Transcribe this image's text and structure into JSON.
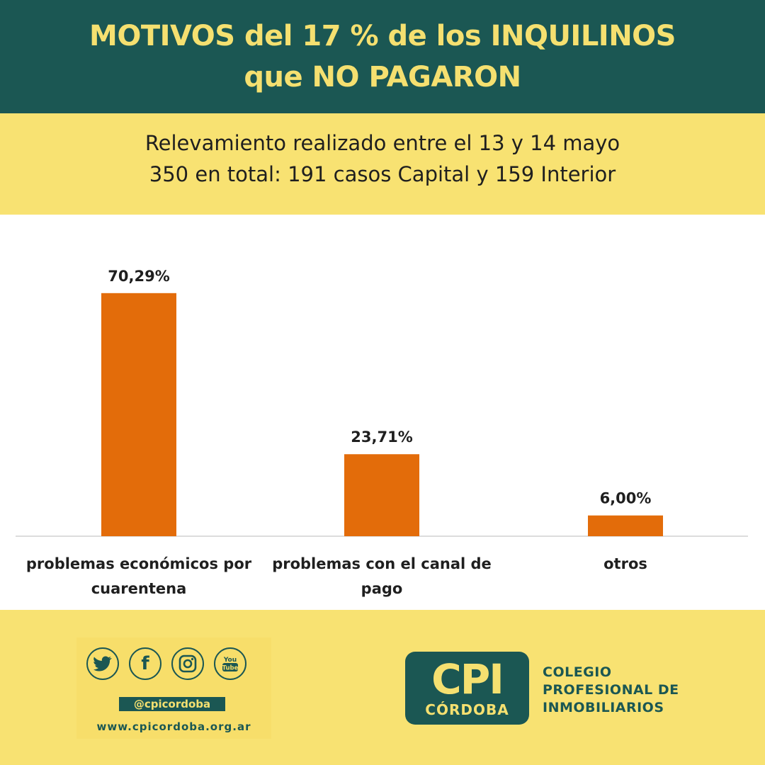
{
  "header": {
    "title_line1": "MOTIVOS del 17 % de los INQUILINOS",
    "title_line2": "que NO PAGARON"
  },
  "subtitle": {
    "line1": "Relevamiento realizado entre el 13 y 14 mayo",
    "line2": "350 en total: 191 casos Capital y 159 Interior"
  },
  "chart_data": {
    "type": "bar",
    "categories": [
      [
        "problemas económicos por",
        "cuarentena"
      ],
      [
        "problemas con el canal de",
        "pago"
      ],
      [
        "otros"
      ]
    ],
    "values": [
      70.29,
      23.71,
      6.0
    ],
    "data_labels": [
      "70,29%",
      "23,71%",
      "6,00%"
    ],
    "ylim": [
      0,
      85
    ],
    "grid": false,
    "bar_color": "#e36c0a"
  },
  "footer": {
    "social_icons": [
      "twitter-icon",
      "facebook-icon",
      "instagram-icon",
      "youtube-icon"
    ],
    "handle": "@cpicordoba",
    "website": "www.cpicordoba.org.ar",
    "logo_big": "CPI",
    "logo_small": "CÓRDOBA",
    "org_line1": "COLEGIO",
    "org_line2": "PROFESIONAL DE",
    "org_line3": "INMOBILIARIOS"
  },
  "colors": {
    "header_bg": "#1b5753",
    "title_text": "#f5e070",
    "page_bg": "#f8e272",
    "bar": "#e36c0a"
  }
}
